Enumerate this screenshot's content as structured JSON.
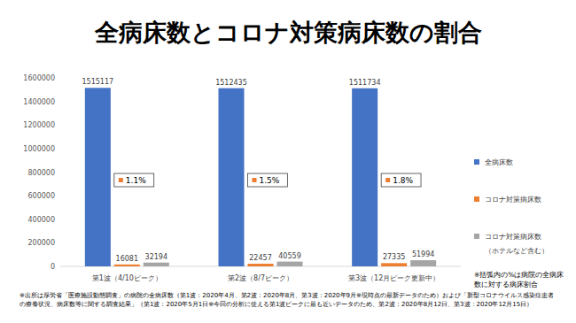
{
  "chart_data": {
    "type": "bar",
    "title": "全病床数とコロナ対策病床数の割合",
    "categories": [
      "第1波（4/10ピーク）",
      "第2波（8/7ピーク）",
      "第3波（12月ピーク更新中）"
    ],
    "series": [
      {
        "name": "全病床数",
        "color": "#4472c4",
        "values": [
          1515117,
          1512435,
          1511734
        ]
      },
      {
        "name": "コロナ対策病床数",
        "color": "#ed7d31",
        "values": [
          16081,
          22457,
          27335
        ]
      },
      {
        "name": "コロナ対策病床数（ホテルなど含む）",
        "color": "#a5a5a5",
        "values": [
          32194,
          40559,
          51994
        ]
      }
    ],
    "annotations": [
      "1.1%",
      "1.5%",
      "1.8%"
    ],
    "note": "※括弧内の%は病院の全病床数に対する病床割合",
    "source": "※出所は厚労省「医療施設動態調査」の病院の全病床数（第1波：2020年4月、第2波：2020年8月、第3波：2020年9月※現時点の最新データのため）および「新型コロナウイルス感染症患者の療養状況、病床数等に関する調査結果」（第1波：2020年5月1日※今回の分析に使える第1波ピークに最も近いデータのため、第2波：2020年8月12日、第3波：2020年12月15日）",
    "ylim": [
      0,
      1600000
    ],
    "yticks": [
      0,
      200000,
      400000,
      600000,
      800000,
      1000000,
      1200000,
      1400000,
      1600000
    ],
    "grid": false,
    "legend": "right",
    "data_labels": true
  }
}
